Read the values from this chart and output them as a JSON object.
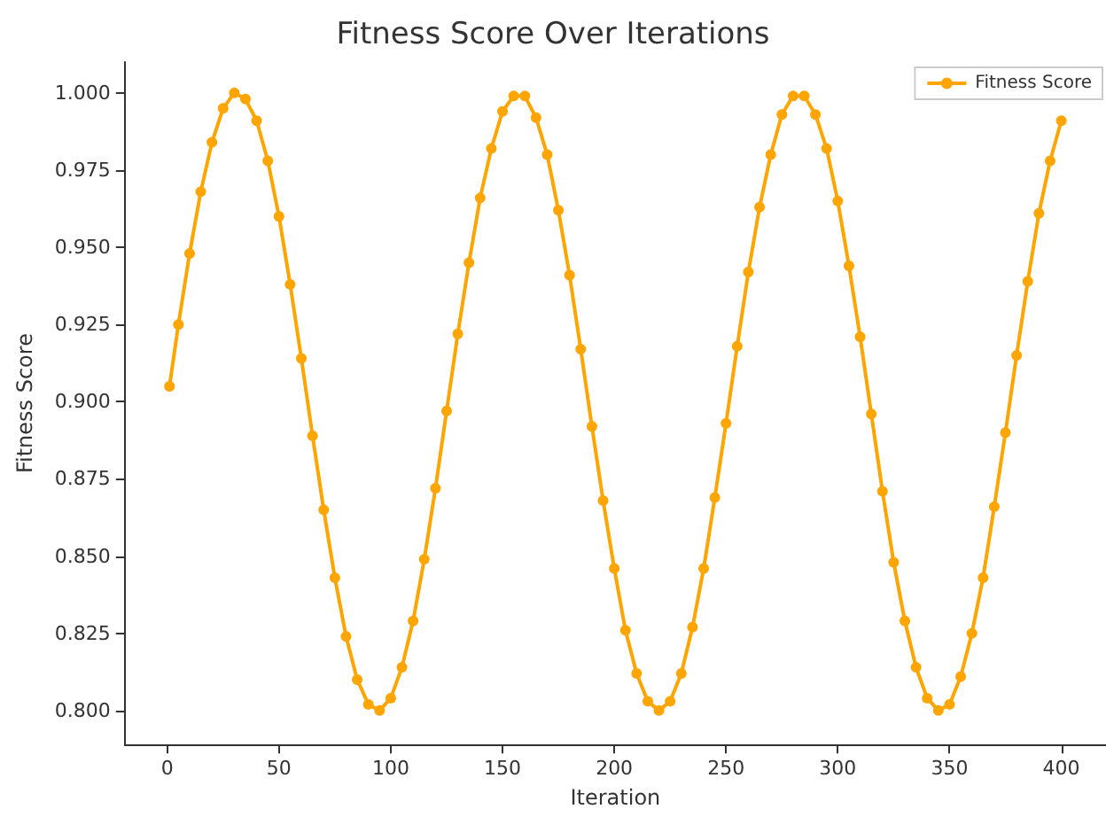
{
  "chart_data": {
    "type": "line",
    "title": "Fitness Score Over Iterations",
    "xlabel": "Iteration",
    "ylabel": "Fitness Score",
    "x": [
      1,
      5,
      10,
      15,
      20,
      25,
      30,
      35,
      40,
      45,
      50,
      55,
      60,
      65,
      70,
      75,
      80,
      85,
      90,
      95,
      100,
      105,
      110,
      115,
      120,
      125,
      130,
      135,
      140,
      145,
      150,
      155,
      160,
      165,
      170,
      175,
      180,
      185,
      190,
      195,
      200,
      205,
      210,
      215,
      220,
      225,
      230,
      235,
      240,
      245,
      250,
      255,
      260,
      265,
      270,
      275,
      280,
      285,
      290,
      295,
      300,
      305,
      310,
      315,
      320,
      325,
      330,
      335,
      340,
      345,
      350,
      355,
      360,
      365,
      370,
      375,
      380,
      385,
      390,
      395,
      400
    ],
    "series": [
      {
        "name": "Fitness Score",
        "color": "#ffa500",
        "values": [
          0.905,
          0.925,
          0.948,
          0.968,
          0.984,
          0.995,
          1.0,
          0.998,
          0.991,
          0.978,
          0.96,
          0.938,
          0.914,
          0.889,
          0.865,
          0.843,
          0.824,
          0.81,
          0.802,
          0.8,
          0.804,
          0.814,
          0.829,
          0.849,
          0.872,
          0.897,
          0.922,
          0.945,
          0.966,
          0.982,
          0.994,
          0.999,
          0.999,
          0.992,
          0.98,
          0.962,
          0.941,
          0.917,
          0.892,
          0.868,
          0.846,
          0.826,
          0.812,
          0.803,
          0.8,
          0.803,
          0.812,
          0.827,
          0.846,
          0.869,
          0.893,
          0.918,
          0.942,
          0.963,
          0.98,
          0.993,
          0.999,
          0.999,
          0.993,
          0.982,
          0.965,
          0.944,
          0.921,
          0.896,
          0.871,
          0.848,
          0.829,
          0.814,
          0.804,
          0.8,
          0.802,
          0.811,
          0.825,
          0.843,
          0.866,
          0.89,
          0.915,
          0.939,
          0.961,
          0.978,
          0.991
        ]
      }
    ],
    "xlim": [
      -19,
      420
    ],
    "xticks": [
      0,
      50,
      100,
      150,
      200,
      250,
      300,
      350,
      400
    ],
    "ylim": [
      0.789,
      1.01
    ],
    "yticks": [
      {
        "value": 0.8,
        "label": "0.800"
      },
      {
        "value": 0.825,
        "label": "0.825"
      },
      {
        "value": 0.85,
        "label": "0.850"
      },
      {
        "value": 0.875,
        "label": "0.875"
      },
      {
        "value": 0.9,
        "label": "0.900"
      },
      {
        "value": 0.925,
        "label": "0.925"
      },
      {
        "value": 0.95,
        "label": "0.950"
      },
      {
        "value": 0.975,
        "label": "0.975"
      },
      {
        "value": 1.0,
        "label": "1.000"
      }
    ],
    "grid": false,
    "legend": "top right",
    "marker": "circle",
    "line_style": "solid"
  }
}
